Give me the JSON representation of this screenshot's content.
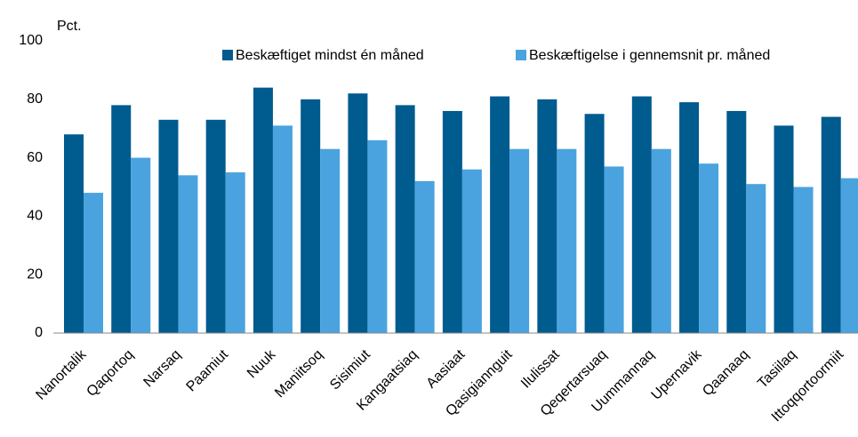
{
  "chart_data": {
    "type": "bar",
    "y_label": "Pct.",
    "categories": [
      "Nanortalik",
      "Qaqortoq",
      "Narsaq",
      "Paamiut",
      "Nuuk",
      "Maniitsoq",
      "Sisimiut",
      "Kangaatsiaq",
      "Aasiaat",
      "Qasigiannguit",
      "Ilulissat",
      "Qeqertarsuaq",
      "Uummannaq",
      "Upernavik",
      "Qaanaaq",
      "Tasiilaq",
      "Ittoqqortoormiit"
    ],
    "series": [
      {
        "name": "Beskæftiget mindst én måned",
        "color": "#005b8f",
        "values": [
          68,
          78,
          73,
          73,
          84,
          80,
          82,
          78,
          76,
          81,
          80,
          75,
          81,
          79,
          76,
          71,
          74
        ]
      },
      {
        "name": "Beskæftigelse i gennemsnit pr. måned",
        "color": "#4aa3df",
        "values": [
          48,
          60,
          54,
          55,
          71,
          63,
          66,
          52,
          56,
          63,
          63,
          57,
          63,
          58,
          51,
          50,
          53
        ]
      }
    ],
    "ylim": [
      0,
      100
    ],
    "yticks": [
      0,
      20,
      40,
      60,
      80,
      100
    ],
    "grid": false,
    "legend": "top-right"
  }
}
